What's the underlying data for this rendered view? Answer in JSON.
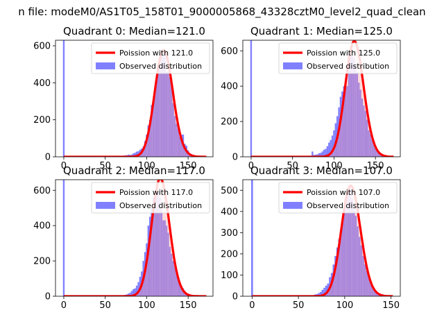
{
  "title": "n file: modeM0/AS1T05_158T01_9000005868_43328cztM0_level2_quad_clean",
  "colors": {
    "bar": "#8080ff",
    "curve": "#ff0000",
    "fill_under": "#ff9999"
  },
  "chart_data": [
    {
      "type": "bar",
      "title": "Quadrant 0: Median=121.0",
      "ylim": [
        0,
        630
      ],
      "xlim": [
        -10,
        180
      ],
      "xticks": [
        0,
        50,
        100,
        150
      ],
      "yticks": [
        0,
        200,
        400,
        600
      ],
      "legend": {
        "curve": "Poission with 121.0",
        "bars": "Observed distribution",
        "placement": "top-right"
      },
      "poisson_mean": 121,
      "spike": {
        "x": 0,
        "value": 630
      },
      "bins_x": [
        70,
        72,
        74,
        76,
        78,
        80,
        82,
        84,
        86,
        88,
        90,
        92,
        94,
        96,
        98,
        100,
        102,
        104,
        106,
        108,
        110,
        112,
        114,
        116,
        118,
        120,
        122,
        124,
        126,
        128,
        130,
        132,
        134,
        136,
        138,
        140,
        142,
        144,
        146,
        148,
        150,
        152,
        154,
        156,
        158,
        160,
        162,
        164,
        166,
        168,
        170
      ],
      "bins_y": [
        3,
        5,
        8,
        8,
        12,
        10,
        12,
        18,
        22,
        28,
        30,
        38,
        45,
        55,
        85,
        120,
        170,
        200,
        280,
        300,
        350,
        420,
        460,
        480,
        560,
        560,
        540,
        460,
        460,
        430,
        380,
        290,
        220,
        180,
        150,
        110,
        120,
        120,
        70,
        60,
        35,
        20,
        15,
        10,
        4,
        2,
        1,
        1,
        0,
        0,
        0
      ]
    },
    {
      "type": "bar",
      "title": "Quadrant 1: Median=125.0",
      "ylim": [
        0,
        660
      ],
      "xlim": [
        -10,
        180
      ],
      "xticks": [
        0,
        50,
        100,
        150
      ],
      "yticks": [
        0,
        200,
        400,
        600
      ],
      "legend": {
        "curve": "Poission with 125.0",
        "bars": "Observed distribution",
        "placement": "top-right"
      },
      "poisson_mean": 125,
      "spike": {
        "x": 0,
        "value": 660
      },
      "bins_x": [
        70,
        72,
        74,
        76,
        78,
        80,
        82,
        84,
        86,
        88,
        90,
        92,
        94,
        96,
        98,
        100,
        102,
        104,
        106,
        108,
        110,
        112,
        114,
        116,
        118,
        120,
        122,
        124,
        126,
        128,
        130,
        132,
        134,
        136,
        138,
        140,
        142,
        144,
        146,
        148,
        150,
        152,
        154,
        156,
        158,
        160,
        162,
        164,
        166,
        168,
        170
      ],
      "bins_y": [
        5,
        5,
        30,
        10,
        12,
        14,
        20,
        22,
        30,
        40,
        45,
        60,
        80,
        95,
        120,
        150,
        190,
        230,
        280,
        340,
        370,
        400,
        410,
        400,
        590,
        610,
        570,
        560,
        520,
        480,
        420,
        380,
        330,
        290,
        260,
        210,
        150,
        130,
        100,
        80,
        60,
        35,
        20,
        15,
        8,
        4,
        2,
        1,
        0,
        0,
        0
      ]
    },
    {
      "type": "bar",
      "title": "Quadrant 2: Median=117.0",
      "ylim": [
        0,
        660
      ],
      "xlim": [
        -10,
        180
      ],
      "xticks": [
        0,
        50,
        100,
        150
      ],
      "yticks": [
        0,
        200,
        400,
        600
      ],
      "legend": {
        "curve": "Poission with 117.0",
        "bars": "Observed distribution",
        "placement": "top-right"
      },
      "poisson_mean": 117,
      "spike": {
        "x": 0,
        "value": 660
      },
      "bins_x": [
        70,
        72,
        74,
        76,
        78,
        80,
        82,
        84,
        86,
        88,
        90,
        92,
        94,
        96,
        98,
        100,
        102,
        104,
        106,
        108,
        110,
        112,
        114,
        116,
        118,
        120,
        122,
        124,
        126,
        128,
        130,
        132,
        134,
        136,
        138,
        140,
        142,
        144,
        146,
        148,
        150,
        152,
        154,
        156,
        158,
        160,
        162,
        164,
        166,
        168,
        170
      ],
      "bins_y": [
        2,
        5,
        8,
        10,
        15,
        20,
        30,
        40,
        45,
        60,
        80,
        110,
        140,
        200,
        250,
        300,
        400,
        450,
        500,
        560,
        580,
        600,
        590,
        560,
        490,
        430,
        430,
        400,
        360,
        280,
        240,
        200,
        170,
        130,
        100,
        80,
        60,
        45,
        30,
        20,
        15,
        10,
        5,
        3,
        2,
        1,
        0,
        0,
        0,
        0,
        0
      ]
    },
    {
      "type": "bar",
      "title": "Quadrant 3: Median=107.0",
      "ylim": [
        0,
        550
      ],
      "xlim": [
        -10,
        160
      ],
      "xticks": [
        0,
        50,
        100,
        150
      ],
      "yticks": [
        0,
        100,
        200,
        300,
        400,
        500
      ],
      "legend": {
        "curve": "Poission with 107.0",
        "bars": "Observed distribution",
        "placement": "top-right"
      },
      "poisson_mean": 107,
      "spike": {
        "x": 0,
        "value": 550
      },
      "bins_x": [
        60,
        62,
        64,
        66,
        68,
        70,
        72,
        74,
        76,
        78,
        80,
        82,
        84,
        86,
        88,
        90,
        92,
        94,
        96,
        98,
        100,
        102,
        104,
        106,
        108,
        110,
        112,
        114,
        116,
        118,
        120,
        122,
        124,
        126,
        128,
        130,
        132,
        134,
        136,
        138,
        140,
        142,
        144,
        146,
        148,
        150
      ],
      "bins_y": [
        1,
        2,
        3,
        5,
        8,
        10,
        15,
        20,
        30,
        40,
        50,
        60,
        90,
        110,
        150,
        190,
        230,
        270,
        310,
        370,
        430,
        480,
        500,
        510,
        460,
        420,
        380,
        330,
        280,
        240,
        190,
        150,
        120,
        100,
        70,
        50,
        35,
        25,
        15,
        8,
        5,
        3,
        2,
        1,
        0,
        0
      ]
    }
  ]
}
